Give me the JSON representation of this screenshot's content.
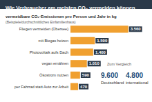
{
  "chart_data": {
    "type": "bar",
    "title": "Wie Verbraucher am meisten CO₂ vermeiden können",
    "subtitle": "vermeidbare CO₂-Emissionen pro Person und Jahr in kg",
    "note": "(Beispiele/durchschnittliches Einfamilienhaus)",
    "orientation": "horizontal",
    "categories": [
      "Fliegen vermeiden (Übersee)",
      "mit Biogas heizen",
      "Photovoltaik aufs Dach",
      "vegan ernähren",
      "Ökostrom nutzen",
      "per Fahrrad statt Auto zur Arbeit"
    ],
    "values": [
      3560,
      1500,
      1400,
      1010,
      590,
      470
    ],
    "value_labels": [
      "3.560",
      "1.500",
      "1.400",
      "1.010",
      "590",
      "470"
    ],
    "data_labels": true,
    "color": "#f0a030",
    "xlim": [
      0,
      4000
    ],
    "xticks": [
      0,
      4000
    ],
    "tick_labels": "y",
    "grid": false,
    "comparison": {
      "title": "Zum Vergleich",
      "items": [
        {
          "value": 9600,
          "label": "9.600",
          "name": "Deutschland"
        },
        {
          "value": 4800,
          "label": "4.800",
          "name": "international"
        }
      ]
    }
  }
}
